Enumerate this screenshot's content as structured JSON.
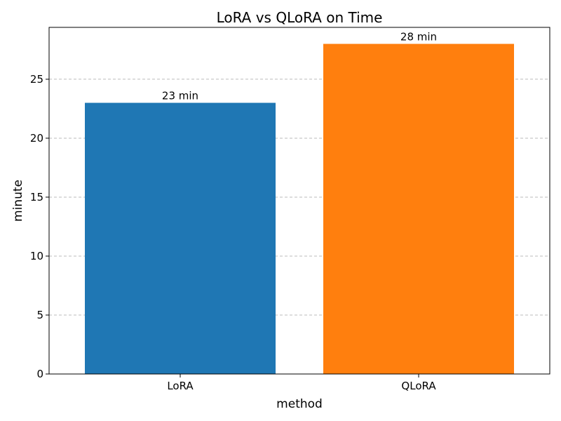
{
  "chart_data": {
    "type": "bar",
    "title": "LoRA vs QLoRA on Time",
    "xlabel": "method",
    "ylabel": "minute",
    "categories": [
      "LoRA",
      "QLoRA"
    ],
    "values": [
      23,
      28
    ],
    "data_labels": [
      "23 min",
      "28 min"
    ],
    "colors": [
      "#1f77b4",
      "#ff7f0e"
    ],
    "ylim": [
      0,
      29.4
    ],
    "yticks": [
      0,
      5,
      10,
      15,
      20,
      25
    ],
    "grid": "horizontal dashed"
  }
}
